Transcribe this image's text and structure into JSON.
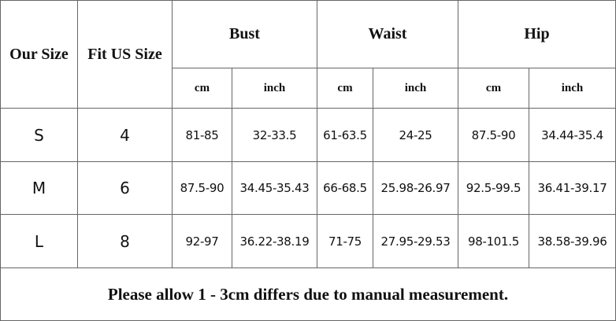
{
  "table": {
    "headers": [
      "Our Size",
      "Fit US Size",
      "Bust",
      "Waist",
      "Hip"
    ],
    "units": [
      "cm",
      "inch",
      "cm",
      "inch",
      "cm",
      "inch"
    ],
    "rows": [
      [
        "S",
        "4",
        "81-85",
        "32-33.5",
        "61-63.5",
        "24-25",
        "87.5-90",
        "34.44-35.4"
      ],
      [
        "M",
        "6",
        "87.5-90",
        "34.45-35.43",
        "66-68.5",
        "25.98-26.97",
        "92.5-99.5",
        "36.41-39.17"
      ],
      [
        "L",
        "8",
        "92-97",
        "36.22-38.19",
        "71-75",
        "27.95-29.53",
        "98-101.5",
        "38.58-39.96"
      ]
    ],
    "footer": "Please allow 1 - 3cm differs due to manual measurement."
  }
}
